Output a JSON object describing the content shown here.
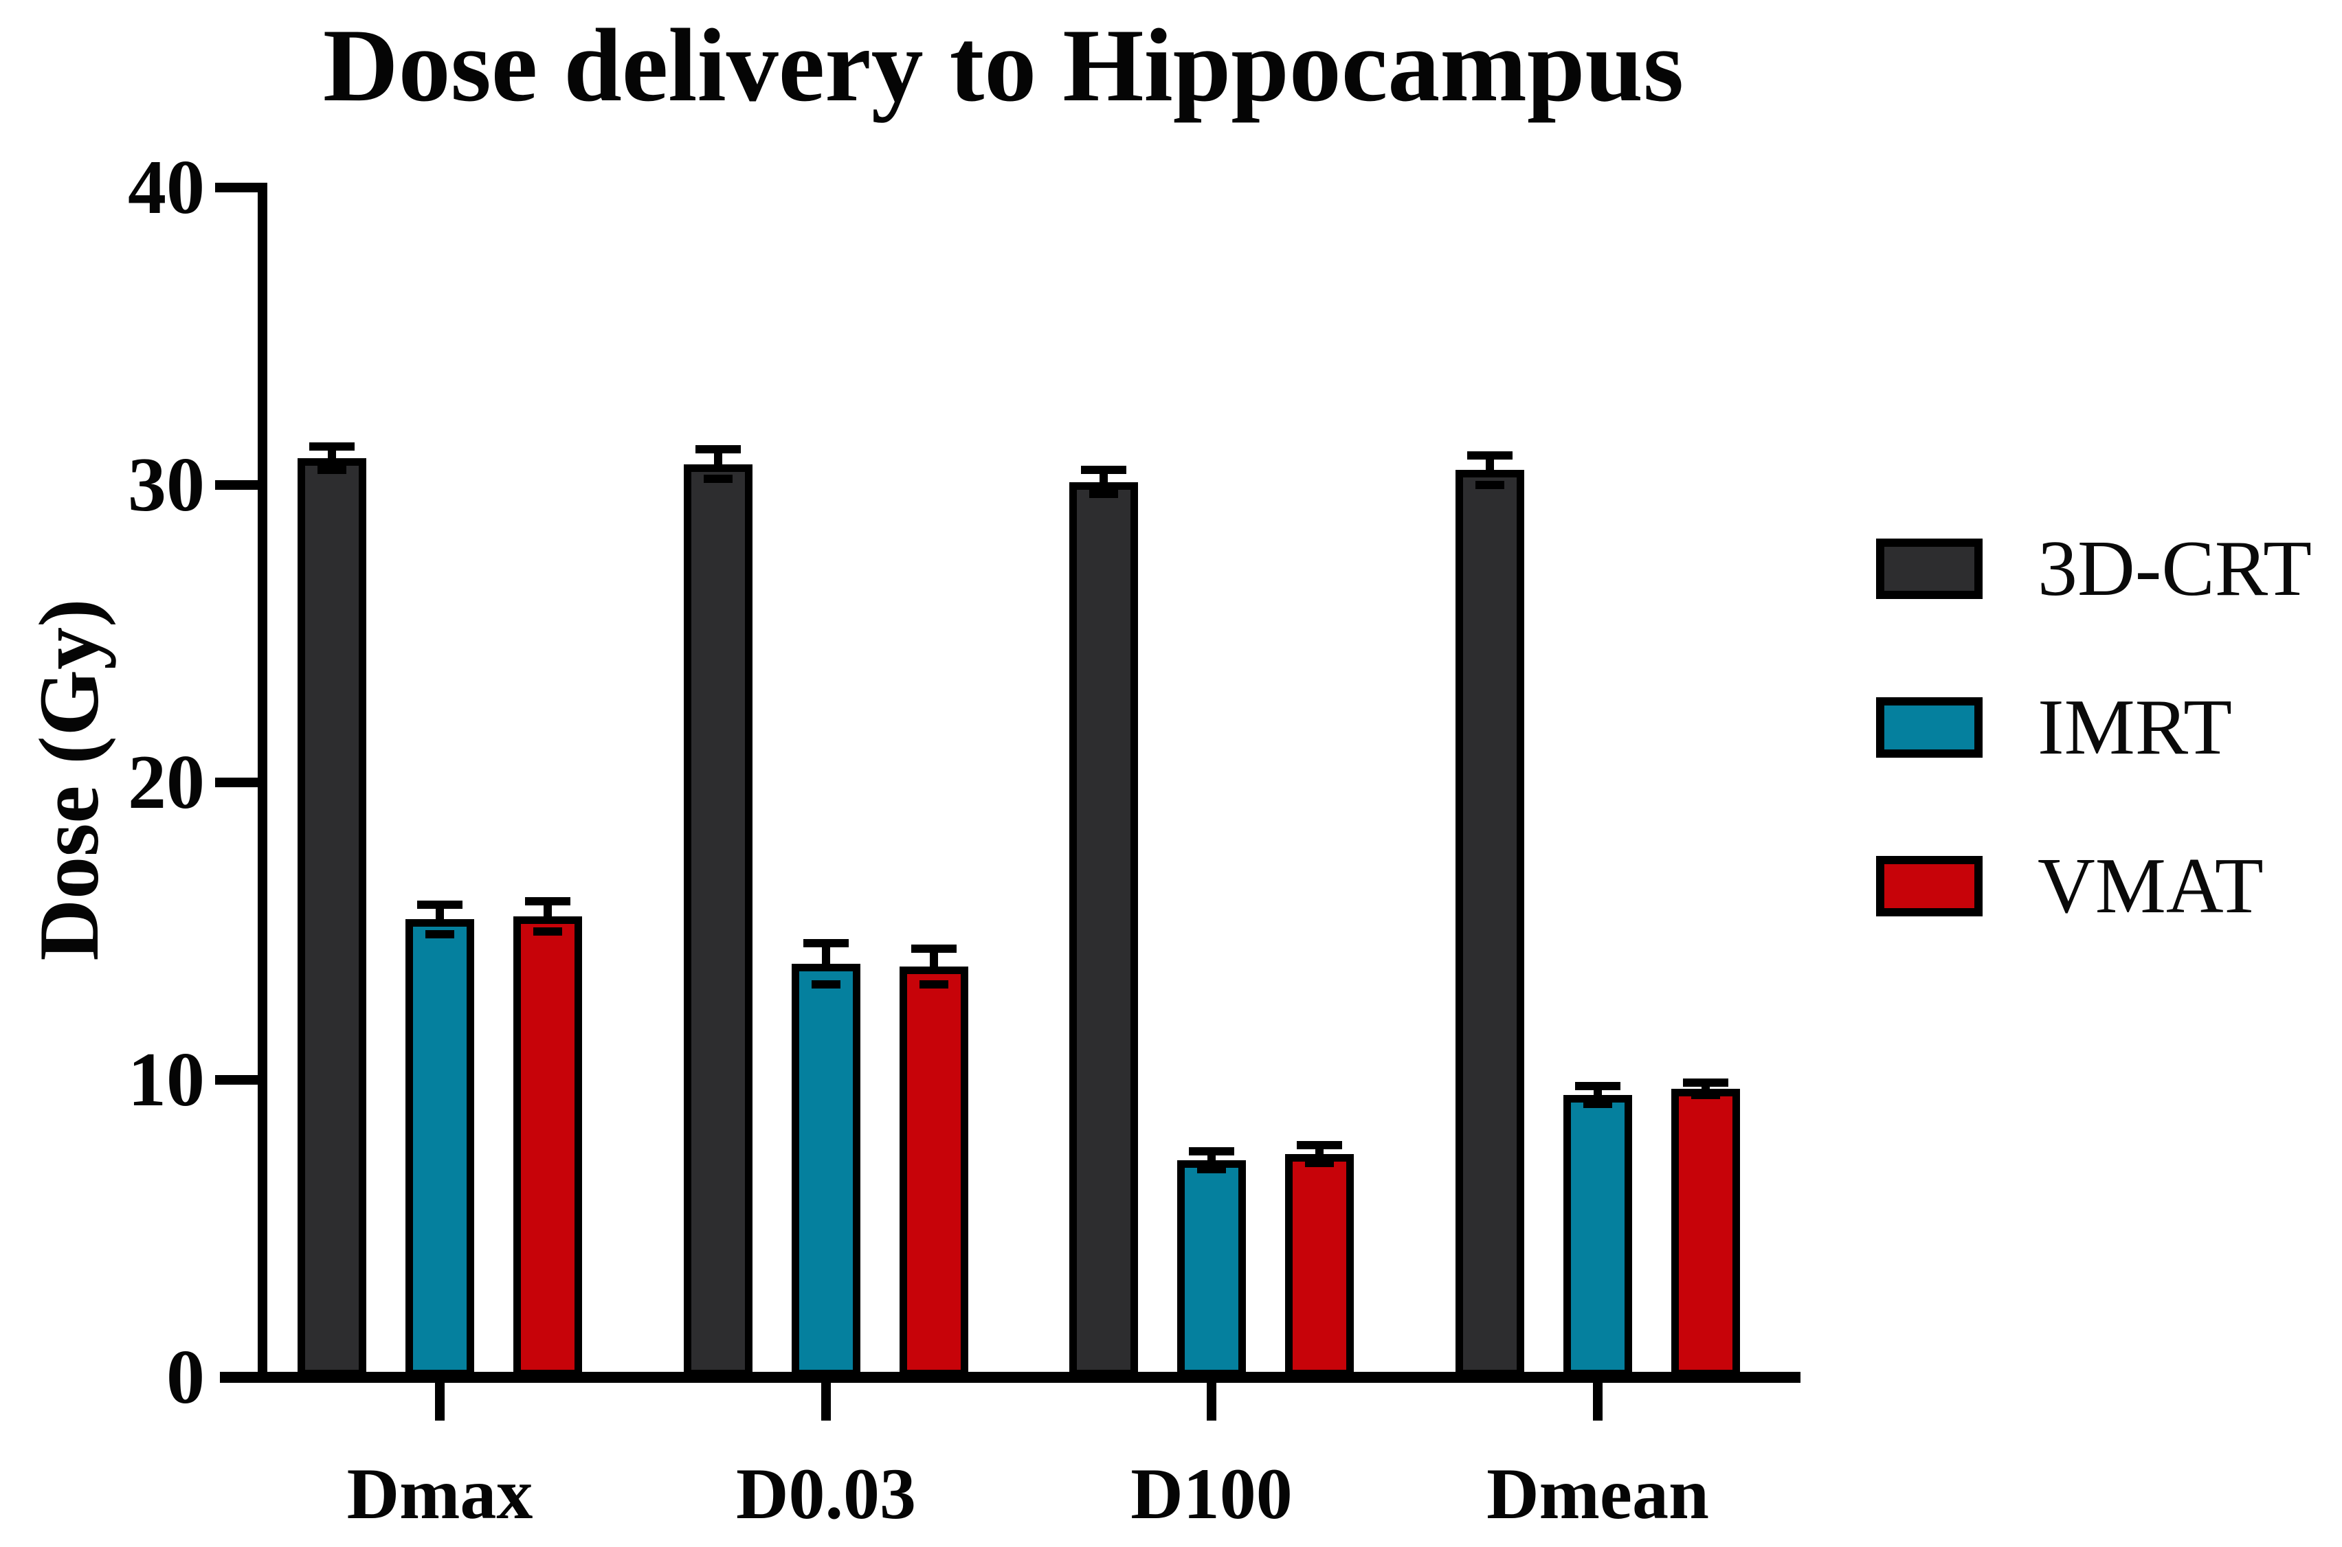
{
  "title": "Dose delivery to Hippocampus",
  "chart_data": {
    "type": "bar",
    "title": "Dose delivery to Hippocampus",
    "xlabel": "",
    "ylabel": "Dose (Gy)",
    "ylim": [
      0,
      40
    ],
    "yticks": [
      "0",
      "10",
      "20",
      "30",
      "40"
    ],
    "grid": false,
    "error_bars": "mean ± SD, capped whiskers",
    "legend_position": "right",
    "categories": [
      "Dmax",
      "D0.03",
      "D100",
      "Dmean"
    ],
    "series": [
      {
        "name": "3D-CRT",
        "color": "#2d2d2f",
        "values": [
          30.9,
          30.7,
          30.1,
          30.5
        ],
        "sd": [
          0.4,
          0.5,
          0.4,
          0.5
        ]
      },
      {
        "name": "IMRT",
        "color": "#05809e",
        "values": [
          15.4,
          13.9,
          7.3,
          9.5
        ],
        "sd": [
          0.5,
          0.7,
          0.3,
          0.3
        ]
      },
      {
        "name": "VMAT",
        "color": "#c70309",
        "values": [
          15.5,
          13.8,
          7.5,
          9.7
        ],
        "sd": [
          0.5,
          0.6,
          0.3,
          0.2
        ]
      }
    ],
    "axis_color": "#000000",
    "background_color": "#ffffff"
  }
}
